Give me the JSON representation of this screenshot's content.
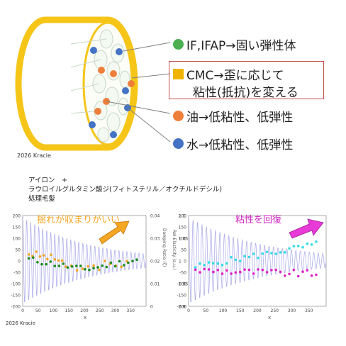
{
  "diagram": {
    "copyright_top": "2026 Kracie",
    "legend": [
      {
        "label": "IF,IFAP→固い弾性体",
        "color": "#4caf50",
        "shape": "circle-icon"
      },
      {
        "label": "CMC→歪に応じて",
        "label2": "粘性(抵抗)を変える",
        "color": "#f0b400",
        "shape": "square-icon"
      },
      {
        "label": "油→低粘性、低弾性",
        "color": "#ee7f3b",
        "shape": "circle-icon"
      },
      {
        "label": "水→低粘性、低弾性",
        "color": "#4472c4",
        "shape": "circle-icon"
      }
    ]
  },
  "treatment": {
    "line1": "アイロン　+",
    "line2": "ラウロイルグルタミン酸ジ(フィトステリル／オクチルドデシル)",
    "line3": "処理毛髪"
  },
  "chart_left": {
    "annotation": "揺れが収まりがいい",
    "left_ticks": [
      "200",
      "150",
      "100",
      "50",
      "0",
      "-50",
      "-100",
      "-150",
      "-200"
    ],
    "right_ticks": [
      "0.04",
      "0.03",
      "0.02",
      "0.01",
      "0"
    ],
    "right_label": "Damping Ratio (ζ)",
    "x_ticks": [
      "0",
      "50",
      "100",
      "150",
      "200",
      "250",
      "300",
      "350"
    ],
    "xlabel": "x",
    "copyright": "2026 Kracie"
  },
  "chart_right": {
    "annotation": "粘性を回復",
    "left_ticks": [
      "200",
      "150",
      "100",
      "50",
      "0",
      "-50",
      "-100",
      "-150",
      "-200"
    ],
    "right_ticks": [
      "1.1",
      "1.05",
      "1",
      "0.95",
      "0.9"
    ],
    "right_label": "ReI-Elasticity (a.u.)",
    "x_ticks": [
      "0",
      "50",
      "100",
      "150",
      "200",
      "250",
      "300",
      "350"
    ],
    "xlabel": "x"
  },
  "colors": {
    "orange_dot": "#f5a623",
    "green_dot": "#1e8c1e",
    "cyan_dot": "#33dde6",
    "magenta_dot": "#e020c8",
    "wave": "#a0a0e0",
    "arrow_left": "#f5a623",
    "arrow_right": "#e83ad6",
    "cylinder": "#f5c518"
  }
}
